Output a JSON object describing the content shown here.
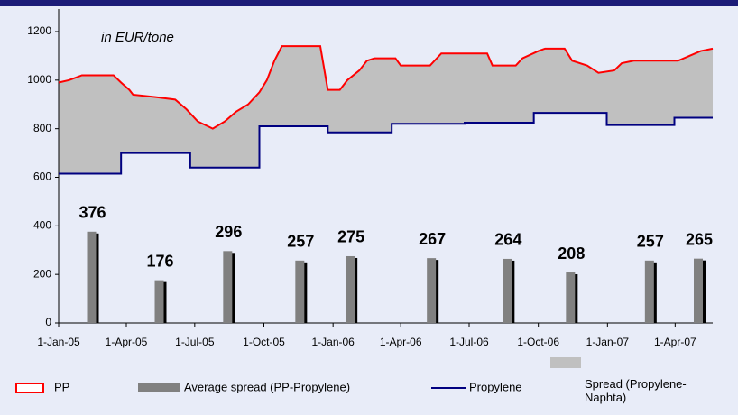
{
  "chart_data": {
    "type": "line",
    "annotation": "in EUR/tone",
    "xlim": [
      "2005-01-01",
      "2007-05-21"
    ],
    "xticks": [
      {
        "value": "2005-01-01",
        "label": "1-Jan-05"
      },
      {
        "value": "2005-04-01",
        "label": "1-Apr-05"
      },
      {
        "value": "2005-07-01",
        "label": "1-Jul-05"
      },
      {
        "value": "2005-10-01",
        "label": "1-Oct-05"
      },
      {
        "value": "2006-01-01",
        "label": "1-Jan-06"
      },
      {
        "value": "2006-04-01",
        "label": "1-Apr-06"
      },
      {
        "value": "2006-07-01",
        "label": "1-Jul-06"
      },
      {
        "value": "2006-10-01",
        "label": "1-Oct-06"
      },
      {
        "value": "2007-01-01",
        "label": "1-Jan-07"
      },
      {
        "value": "2007-04-01",
        "label": "1-Apr-07"
      }
    ],
    "ylim": [
      0,
      1200
    ],
    "yticks": [
      0,
      200,
      400,
      600,
      800,
      1000,
      1200
    ],
    "grid": false,
    "series": [
      {
        "name": "PP",
        "type": "line",
        "color": "#ff0000",
        "x": [
          "2005-01-01",
          "2005-01-15",
          "2005-02-01",
          "2005-03-15",
          "2005-03-25",
          "2005-04-05",
          "2005-04-10",
          "2005-05-10",
          "2005-06-05",
          "2005-06-20",
          "2005-07-05",
          "2005-07-25",
          "2005-08-10",
          "2005-08-25",
          "2005-09-10",
          "2005-09-25",
          "2005-10-05",
          "2005-10-15",
          "2005-10-25",
          "2005-12-15",
          "2005-12-25",
          "2006-01-10",
          "2006-01-20",
          "2006-02-05",
          "2006-02-15",
          "2006-02-25",
          "2006-03-25",
          "2006-04-01",
          "2006-05-10",
          "2006-05-25",
          "2006-07-25",
          "2006-08-01",
          "2006-09-01",
          "2006-09-10",
          "2006-10-01",
          "2006-10-10",
          "2006-11-05",
          "2006-11-15",
          "2006-12-05",
          "2006-12-20",
          "2007-01-10",
          "2007-01-20",
          "2007-02-05",
          "2007-04-05",
          "2007-04-20",
          "2007-05-05",
          "2007-05-21"
        ],
        "values": [
          990,
          1000,
          1020,
          1020,
          990,
          960,
          940,
          930,
          920,
          880,
          830,
          800,
          830,
          870,
          900,
          950,
          1000,
          1080,
          1140,
          1140,
          960,
          960,
          1000,
          1040,
          1080,
          1090,
          1090,
          1060,
          1060,
          1110,
          1110,
          1060,
          1060,
          1090,
          1120,
          1130,
          1130,
          1080,
          1060,
          1030,
          1040,
          1070,
          1080,
          1080,
          1100,
          1120,
          1130
        ]
      },
      {
        "name": "Average spread (PP-Propylene)",
        "type": "bar",
        "color": "#808080",
        "x": [
          "2005-02-15",
          "2005-05-16",
          "2005-08-15",
          "2005-11-19",
          "2006-01-25",
          "2006-05-13",
          "2006-08-22",
          "2006-11-14",
          "2007-02-27",
          "2007-05-03"
        ],
        "values": [
          376,
          176,
          296,
          257,
          275,
          267,
          264,
          208,
          257,
          265
        ]
      },
      {
        "name": "Propylene",
        "type": "line",
        "color": "#000080",
        "x": [
          "2005-01-01",
          "2005-03-25",
          "2005-03-25",
          "2005-06-25",
          "2005-06-25",
          "2005-09-25",
          "2005-09-25",
          "2005-12-25",
          "2005-12-25",
          "2006-03-20",
          "2006-03-20",
          "2006-06-25",
          "2006-06-25",
          "2006-09-25",
          "2006-09-25",
          "2006-12-31",
          "2006-12-31",
          "2007-03-31",
          "2007-03-31",
          "2007-05-21"
        ],
        "values": [
          615,
          615,
          700,
          700,
          640,
          640,
          810,
          810,
          785,
          785,
          820,
          820,
          825,
          825,
          865,
          865,
          815,
          815,
          845,
          845
        ]
      },
      {
        "name": "Spread (Propylene-Naphta)",
        "type": "fill",
        "color": "#c0c0c0"
      }
    ]
  }
}
